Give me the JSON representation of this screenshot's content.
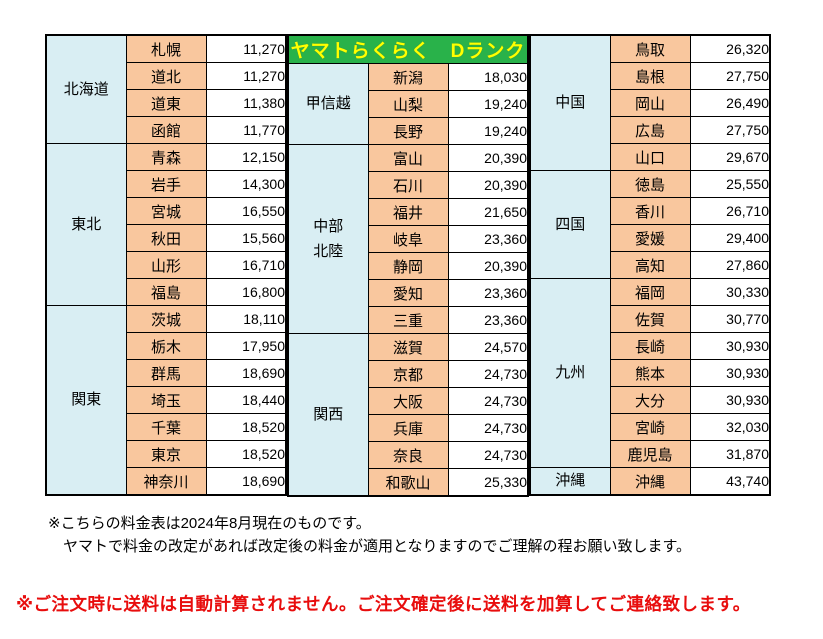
{
  "title": "ヤマトらくらく　Dランク",
  "colors": {
    "header_bg": "#29B24A",
    "header_text": "#FFFF00",
    "region_bg": "#D9EEF3",
    "prefecture_bg": "#F9C79E",
    "price_bg": "#FFFFFF",
    "border": "#000000",
    "warning_text": "#E80D0D"
  },
  "table": {
    "columns": [
      "region",
      "prefecture",
      "price_yen"
    ],
    "groups": [
      {
        "header": null,
        "regions": [
          {
            "name": "北海道",
            "rows": [
              [
                "札幌",
                "11,270"
              ],
              [
                "道北",
                "11,270"
              ],
              [
                "道東",
                "11,380"
              ],
              [
                "函館",
                "11,770"
              ]
            ]
          },
          {
            "name": "東北",
            "rows": [
              [
                "青森",
                "12,150"
              ],
              [
                "岩手",
                "14,300"
              ],
              [
                "宮城",
                "16,550"
              ],
              [
                "秋田",
                "15,560"
              ],
              [
                "山形",
                "16,710"
              ],
              [
                "福島",
                "16,800"
              ]
            ]
          },
          {
            "name": "関東",
            "rows": [
              [
                "茨城",
                "18,110"
              ],
              [
                "栃木",
                "17,950"
              ],
              [
                "群馬",
                "18,690"
              ],
              [
                "埼玉",
                "18,440"
              ],
              [
                "千葉",
                "18,520"
              ],
              [
                "東京",
                "18,520"
              ],
              [
                "神奈川",
                "18,690"
              ]
            ]
          }
        ]
      },
      {
        "header": "ヤマトらくらく　Dランク",
        "regions": [
          {
            "name": "甲信越",
            "rows": [
              [
                "新潟",
                "18,030"
              ],
              [
                "山梨",
                "19,240"
              ],
              [
                "長野",
                "19,240"
              ]
            ]
          },
          {
            "name": "中部\n北陸",
            "rows": [
              [
                "富山",
                "20,390"
              ],
              [
                "石川",
                "20,390"
              ],
              [
                "福井",
                "21,650"
              ],
              [
                "岐阜",
                "23,360"
              ],
              [
                "静岡",
                "20,390"
              ],
              [
                "愛知",
                "23,360"
              ],
              [
                "三重",
                "23,360"
              ]
            ]
          },
          {
            "name": "関西",
            "rows": [
              [
                "滋賀",
                "24,570"
              ],
              [
                "京都",
                "24,730"
              ],
              [
                "大阪",
                "24,730"
              ],
              [
                "兵庫",
                "24,730"
              ],
              [
                "奈良",
                "24,730"
              ],
              [
                "和歌山",
                "25,330"
              ]
            ]
          }
        ]
      },
      {
        "header": null,
        "regions": [
          {
            "name": "中国",
            "rows": [
              [
                "鳥取",
                "26,320"
              ],
              [
                "島根",
                "27,750"
              ],
              [
                "岡山",
                "26,490"
              ],
              [
                "広島",
                "27,750"
              ],
              [
                "山口",
                "29,670"
              ]
            ]
          },
          {
            "name": "四国",
            "rows": [
              [
                "徳島",
                "25,550"
              ],
              [
                "香川",
                "26,710"
              ],
              [
                "愛媛",
                "29,400"
              ],
              [
                "高知",
                "27,860"
              ]
            ]
          },
          {
            "name": "九州",
            "rows": [
              [
                "福岡",
                "30,330"
              ],
              [
                "佐賀",
                "30,770"
              ],
              [
                "長崎",
                "30,930"
              ],
              [
                "熊本",
                "30,930"
              ],
              [
                "大分",
                "30,930"
              ],
              [
                "宮崎",
                "32,030"
              ],
              [
                "鹿児島",
                "31,870"
              ]
            ]
          },
          {
            "name": "沖縄",
            "rows": [
              [
                "沖縄",
                "43,740"
              ]
            ]
          }
        ]
      }
    ]
  },
  "notes": {
    "line1": "※こちらの料金表は2024年8月現在のものです。",
    "line2": "ヤマトで料金の改定があれば改定後の料金が適用となりますのでご理解の程お願い致します。"
  },
  "warning": "※ご注文時に送料は自動計算されません。ご注文確定後に送料を加算してご連絡致します。"
}
